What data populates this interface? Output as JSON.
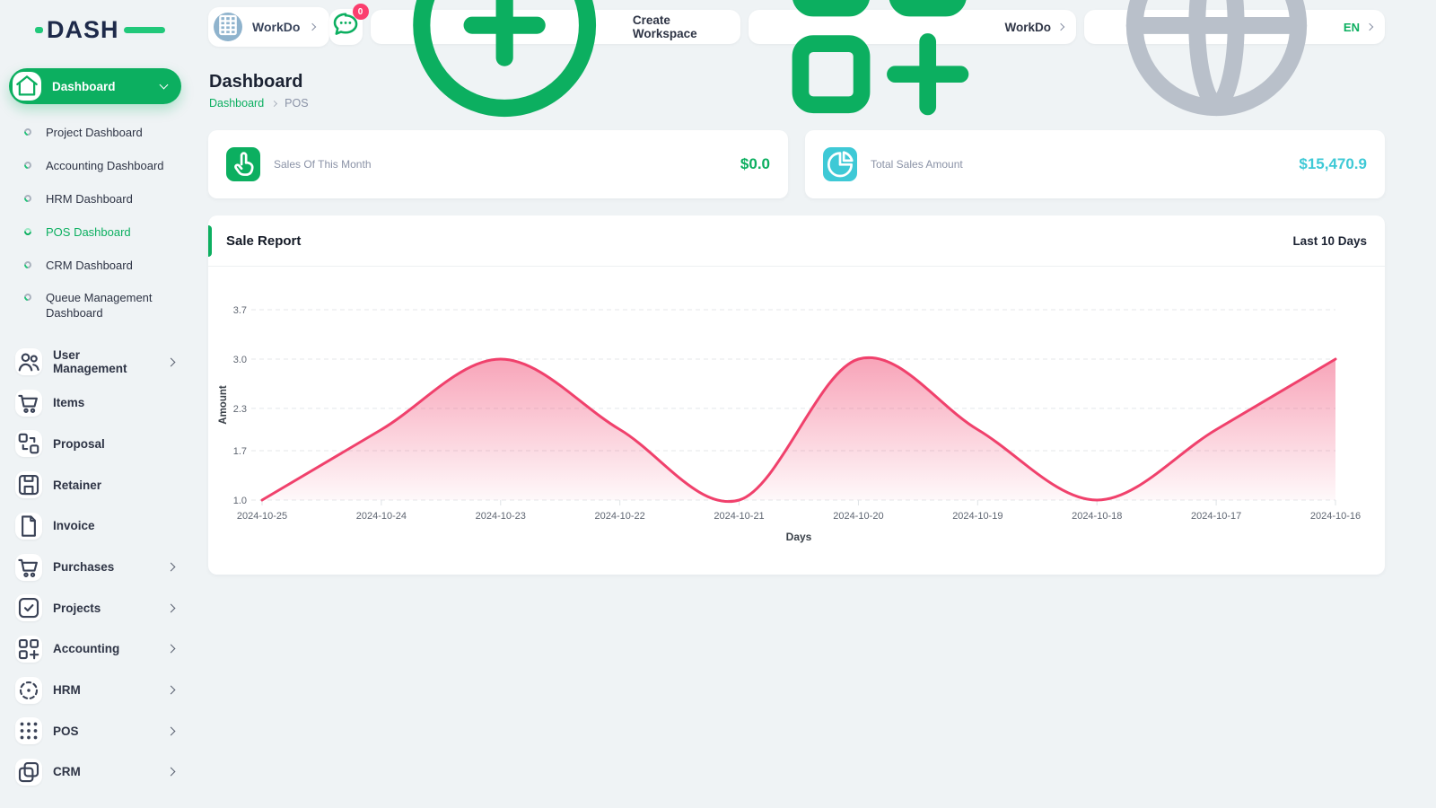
{
  "app": {
    "logo_text": "DASH"
  },
  "colors": {
    "green": "#0caf60",
    "cyan": "#3ec9d6",
    "pink": "#f0416c",
    "navy": "#1e2a4a",
    "gray_text": "#8a92a6",
    "badge_red": "#fb3e6e",
    "background": "#eff3f5"
  },
  "sidebar": {
    "dashboard": {
      "label": "Dashboard",
      "icon": "home-icon"
    },
    "dashboard_subitems": [
      {
        "label": "Project Dashboard",
        "active": false
      },
      {
        "label": "Accounting Dashboard",
        "active": false
      },
      {
        "label": "HRM Dashboard",
        "active": false
      },
      {
        "label": "POS Dashboard",
        "active": true
      },
      {
        "label": "CRM Dashboard",
        "active": false
      },
      {
        "label": "Queue Management Dashboard",
        "active": false
      }
    ],
    "menu_items": [
      {
        "label": "User Management",
        "icon": "users-icon",
        "has_chevron": true
      },
      {
        "label": "Items",
        "icon": "cart-icon",
        "has_chevron": false
      },
      {
        "label": "Proposal",
        "icon": "swap-boxes-icon",
        "has_chevron": false
      },
      {
        "label": "Retainer",
        "icon": "save-icon",
        "has_chevron": false
      },
      {
        "label": "Invoice",
        "icon": "document-icon",
        "has_chevron": false
      },
      {
        "label": "Purchases",
        "icon": "cart-icon",
        "has_chevron": true
      },
      {
        "label": "Projects",
        "icon": "checkbox-icon",
        "has_chevron": true
      },
      {
        "label": "Accounting",
        "icon": "grid-plus-icon",
        "has_chevron": true
      },
      {
        "label": "HRM",
        "icon": "target-icon",
        "has_chevron": true
      },
      {
        "label": "POS",
        "icon": "dots-grid-icon",
        "has_chevron": true
      },
      {
        "label": "CRM",
        "icon": "copy-icon",
        "has_chevron": true
      }
    ]
  },
  "header": {
    "workspace": {
      "name": "WorkDo",
      "icon": "building-icon"
    },
    "messages": {
      "badge": "0",
      "icon": "chat-icon"
    },
    "create_workspace": {
      "label": "Create Workspace",
      "icon": "plus-circle-icon"
    },
    "switcher": {
      "label": "WorkDo",
      "icon": "grid-plus-icon"
    },
    "language": {
      "label": "EN",
      "icon": "globe-icon"
    }
  },
  "page": {
    "title": "Dashboard",
    "breadcrumb": [
      "Dashboard",
      "POS"
    ]
  },
  "stats": [
    {
      "label": "Sales Of This Month",
      "value": "$0.0",
      "icon": "tap-icon",
      "accent": "#0caf60"
    },
    {
      "label": "Total Sales Amount",
      "value": "$15,470.9",
      "icon": "pie-chart-icon",
      "accent": "#3ec9d6"
    }
  ],
  "chart_card": {
    "title": "Sale Report",
    "period_label": "Last 10 Days"
  },
  "chart_data": {
    "type": "area",
    "x": [
      "2024-10-25",
      "2024-10-24",
      "2024-10-23",
      "2024-10-22",
      "2024-10-21",
      "2024-10-20",
      "2024-10-19",
      "2024-10-18",
      "2024-10-17",
      "2024-10-16"
    ],
    "series": [
      {
        "name": "Amount",
        "values": [
          1,
          2,
          3,
          2,
          1,
          3,
          2,
          1,
          2,
          3
        ]
      }
    ],
    "title": "Sale Report",
    "xlabel": "Days",
    "ylabel": "Amount",
    "ylim": [
      1.0,
      3.7
    ],
    "yticks": [
      3.7,
      3.0,
      2.3,
      1.7,
      1.0
    ],
    "line_color": "#f0416c",
    "fill": "vertical-gradient",
    "grid": "horizontal-dashed",
    "legend": "none"
  }
}
